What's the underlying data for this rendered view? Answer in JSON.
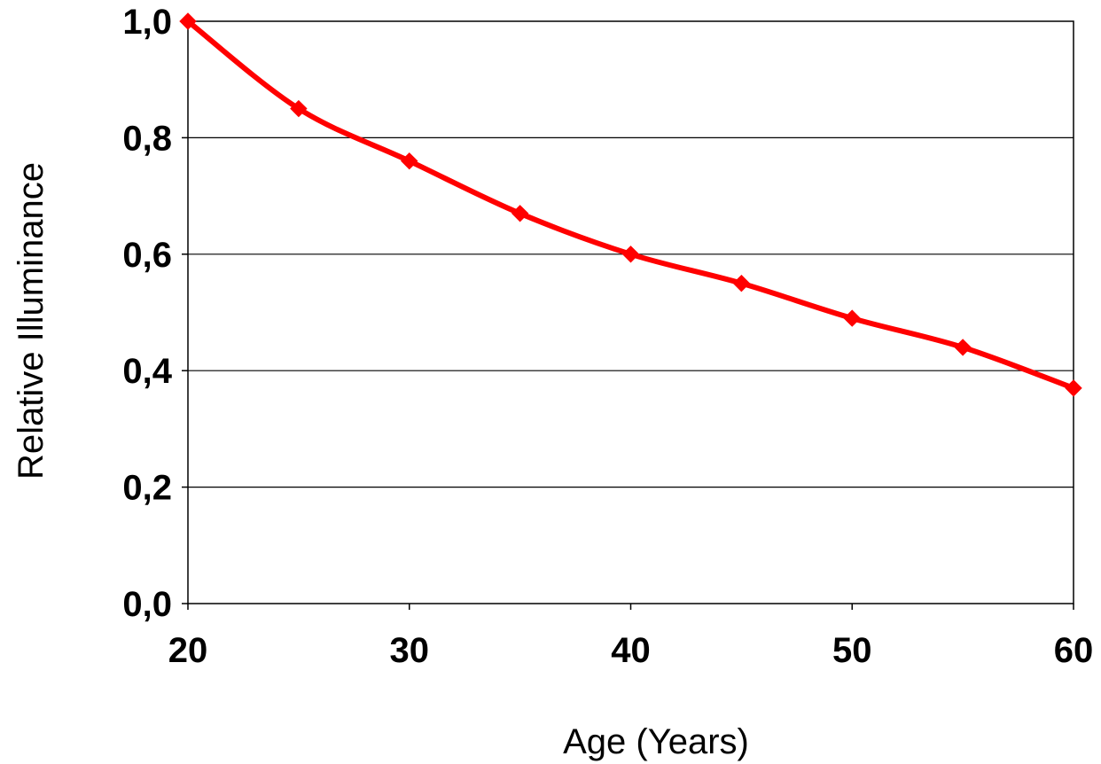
{
  "chart_data": {
    "type": "line",
    "title": "",
    "xlabel": "Age (Years)",
    "ylabel": "Relative Illuminance",
    "x": [
      20,
      25,
      30,
      35,
      40,
      45,
      50,
      55,
      60
    ],
    "series": [
      {
        "values": [
          1.0,
          0.85,
          0.76,
          0.67,
          0.6,
          0.55,
          0.49,
          0.44,
          0.37
        ],
        "color": "#ff0000",
        "marker": "diamond"
      }
    ],
    "xlim": [
      20,
      60
    ],
    "ylim": [
      0,
      1
    ],
    "x_ticks": [
      20,
      30,
      40,
      50,
      60
    ],
    "x_tick_labels": [
      "20",
      "30",
      "40",
      "50",
      "60"
    ],
    "y_ticks": [
      0,
      0.2,
      0.4,
      0.6,
      0.8,
      1.0
    ],
    "y_tick_labels": [
      "0,0",
      "0,2",
      "0,4",
      "0,6",
      "0,8",
      "1,0"
    ],
    "grid": "horizontal",
    "legend": "none"
  }
}
